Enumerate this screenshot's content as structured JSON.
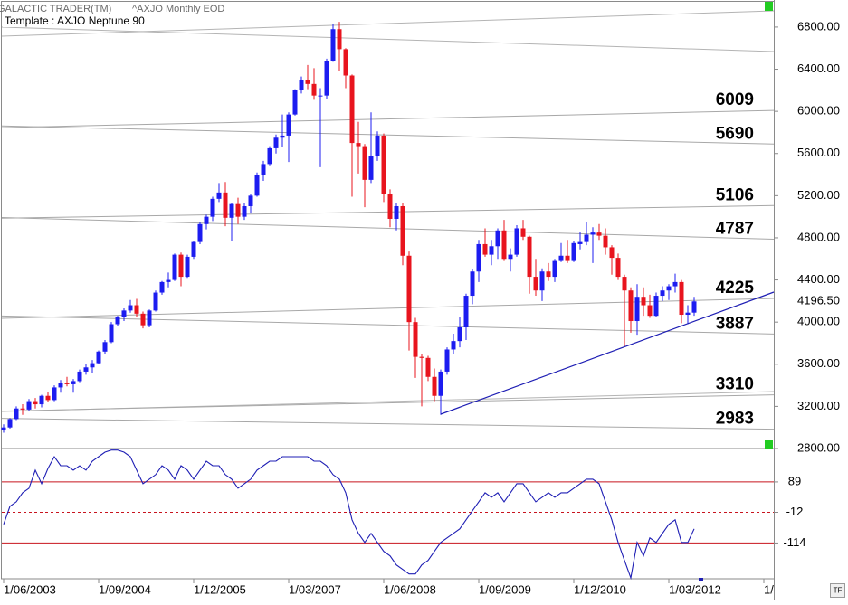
{
  "header": {
    "app": "GALACTIC TRADER(TM)",
    "symbol": "^AXJO Monthly EOD",
    "template": "Template : AXJO Neptune 90"
  },
  "tf_button": "TF",
  "chart_data": [
    {
      "type": "candlestick",
      "up_color": "#1c1cf0",
      "down_color": "#e8141e",
      "x": [
        "1/06/2003",
        "1/07/2003",
        "1/08/2003",
        "1/09/2003",
        "1/10/2003",
        "1/11/2003",
        "1/12/2003",
        "1/01/2004",
        "1/02/2004",
        "1/03/2004",
        "1/04/2004",
        "1/05/2004",
        "1/06/2004",
        "1/07/2004",
        "1/08/2004",
        "1/09/2004",
        "1/10/2004",
        "1/11/2004",
        "1/12/2004",
        "1/01/2005",
        "1/02/2005",
        "1/03/2005",
        "1/04/2005",
        "1/05/2005",
        "1/06/2005",
        "1/07/2005",
        "1/08/2005",
        "1/09/2005",
        "1/10/2005",
        "1/11/2005",
        "1/12/2005",
        "1/01/2006",
        "1/02/2006",
        "1/03/2006",
        "1/04/2006",
        "1/05/2006",
        "1/06/2006",
        "1/07/2006",
        "1/08/2006",
        "1/09/2006",
        "1/10/2006",
        "1/11/2006",
        "1/12/2006",
        "1/01/2007",
        "1/02/2007",
        "1/03/2007",
        "1/04/2007",
        "1/05/2007",
        "1/06/2007",
        "1/07/2007",
        "1/08/2007",
        "1/09/2007",
        "1/10/2007",
        "1/11/2007",
        "1/12/2007",
        "1/01/2008",
        "1/02/2008",
        "1/03/2008",
        "1/04/2008",
        "1/05/2008",
        "1/06/2008",
        "1/07/2008",
        "1/08/2008",
        "1/09/2008",
        "1/10/2008",
        "1/11/2008",
        "1/12/2008",
        "1/01/2009",
        "1/02/2009",
        "1/03/2009",
        "1/04/2009",
        "1/05/2009",
        "1/06/2009",
        "1/07/2009",
        "1/08/2009",
        "1/09/2009",
        "1/10/2009",
        "1/11/2009",
        "1/12/2009",
        "1/01/2010",
        "1/02/2010",
        "1/03/2010",
        "1/04/2010",
        "1/05/2010",
        "1/06/2010",
        "1/07/2010",
        "1/08/2010",
        "1/09/2010",
        "1/10/2010",
        "1/11/2010",
        "1/12/2010",
        "1/01/2011",
        "1/02/2011",
        "1/03/2011",
        "1/04/2011",
        "1/05/2011",
        "1/06/2011",
        "1/07/2011",
        "1/08/2011",
        "1/09/2011",
        "1/10/2011",
        "1/11/2011",
        "1/12/2011",
        "1/01/2012",
        "1/02/2012",
        "1/03/2012",
        "1/04/2012",
        "1/05/2012",
        "1/06/2012",
        "1/07/2012"
      ],
      "ohlc": [
        [
          2980,
          3030,
          2950,
          3000
        ],
        [
          3000,
          3090,
          2990,
          3080
        ],
        [
          3080,
          3200,
          3070,
          3180
        ],
        [
          3180,
          3220,
          3120,
          3170
        ],
        [
          3170,
          3270,
          3160,
          3250
        ],
        [
          3250,
          3280,
          3180,
          3220
        ],
        [
          3220,
          3310,
          3190,
          3300
        ],
        [
          3300,
          3340,
          3240,
          3260
        ],
        [
          3260,
          3400,
          3250,
          3380
        ],
        [
          3380,
          3450,
          3330,
          3420
        ],
        [
          3420,
          3480,
          3390,
          3410
        ],
        [
          3410,
          3460,
          3330,
          3440
        ],
        [
          3440,
          3550,
          3430,
          3530
        ],
        [
          3530,
          3600,
          3500,
          3570
        ],
        [
          3570,
          3640,
          3520,
          3610
        ],
        [
          3610,
          3730,
          3600,
          3720
        ],
        [
          3720,
          3830,
          3700,
          3810
        ],
        [
          3810,
          4000,
          3800,
          3980
        ],
        [
          3980,
          4060,
          3960,
          4050
        ],
        [
          4050,
          4130,
          4010,
          4110
        ],
        [
          4110,
          4210,
          4090,
          4160
        ],
        [
          4160,
          4220,
          4050,
          4080
        ],
        [
          4080,
          4100,
          3940,
          3970
        ],
        [
          3970,
          4120,
          3950,
          4110
        ],
        [
          4110,
          4300,
          4100,
          4280
        ],
        [
          4280,
          4390,
          4260,
          4380
        ],
        [
          4380,
          4470,
          4330,
          4400
        ],
        [
          4400,
          4650,
          4390,
          4640
        ],
        [
          4640,
          4660,
          4340,
          4430
        ],
        [
          4430,
          4640,
          4420,
          4620
        ],
        [
          4620,
          4770,
          4600,
          4760
        ],
        [
          4760,
          4950,
          4740,
          4930
        ],
        [
          4930,
          5020,
          4880,
          5000
        ],
        [
          5000,
          5190,
          4960,
          5170
        ],
        [
          5170,
          5320,
          5140,
          5230
        ],
        [
          5230,
          5330,
          4910,
          4990
        ],
        [
          4990,
          5130,
          4770,
          5120
        ],
        [
          5120,
          5180,
          4930,
          5000
        ],
        [
          5000,
          5130,
          4970,
          5100
        ],
        [
          5100,
          5220,
          5030,
          5200
        ],
        [
          5200,
          5420,
          5190,
          5400
        ],
        [
          5400,
          5530,
          5340,
          5500
        ],
        [
          5500,
          5670,
          5480,
          5650
        ],
        [
          5650,
          5780,
          5600,
          5750
        ],
        [
          5750,
          5970,
          5660,
          5770
        ],
        [
          5770,
          5990,
          5520,
          5970
        ],
        [
          5970,
          6210,
          5960,
          6200
        ],
        [
          6200,
          6330,
          6170,
          6300
        ],
        [
          6300,
          6440,
          6210,
          6260
        ],
        [
          6260,
          6410,
          6110,
          6150
        ],
        [
          6150,
          6220,
          5470,
          6150
        ],
        [
          6150,
          6500,
          6120,
          6480
        ],
        [
          6480,
          6830,
          6470,
          6780
        ],
        [
          6780,
          6850,
          6380,
          6590
        ],
        [
          6590,
          6600,
          6220,
          6340
        ],
        [
          6340,
          6350,
          5190,
          5700
        ],
        [
          5700,
          5900,
          5410,
          5670
        ],
        [
          5670,
          5690,
          5090,
          5350
        ],
        [
          5350,
          5990,
          5320,
          5580
        ],
        [
          5580,
          5810,
          5530,
          5770
        ],
        [
          5770,
          5790,
          5140,
          5220
        ],
        [
          5220,
          5260,
          4900,
          4980
        ],
        [
          4980,
          5130,
          4870,
          5100
        ],
        [
          5100,
          5130,
          4540,
          4630
        ],
        [
          4630,
          4670,
          3730,
          4000
        ],
        [
          4000,
          4040,
          3470,
          3670
        ],
        [
          3670,
          3700,
          3200,
          3660
        ],
        [
          3660,
          3680,
          3440,
          3480
        ],
        [
          3480,
          3560,
          3250,
          3300
        ],
        [
          3300,
          3550,
          3120,
          3530
        ],
        [
          3530,
          3760,
          3500,
          3740
        ],
        [
          3740,
          3890,
          3700,
          3820
        ],
        [
          3820,
          4050,
          3760,
          3950
        ],
        [
          3950,
          4270,
          3830,
          4250
        ],
        [
          4250,
          4500,
          4170,
          4480
        ],
        [
          4480,
          4780,
          4380,
          4740
        ],
        [
          4740,
          4890,
          4620,
          4640
        ],
        [
          4640,
          4780,
          4540,
          4720
        ],
        [
          4720,
          4890,
          4600,
          4870
        ],
        [
          4870,
          4970,
          4580,
          4600
        ],
        [
          4600,
          4700,
          4480,
          4640
        ],
        [
          4640,
          4920,
          4620,
          4890
        ],
        [
          4890,
          4970,
          4780,
          4810
        ],
        [
          4810,
          4820,
          4270,
          4430
        ],
        [
          4430,
          4600,
          4250,
          4300
        ],
        [
          4300,
          4510,
          4200,
          4480
        ],
        [
          4480,
          4560,
          4390,
          4430
        ],
        [
          4430,
          4600,
          4380,
          4580
        ],
        [
          4580,
          4750,
          4570,
          4630
        ],
        [
          4630,
          4780,
          4560,
          4580
        ],
        [
          4580,
          4770,
          4570,
          4750
        ],
        [
          4740,
          4860,
          4690,
          4760
        ],
        [
          4760,
          4950,
          4730,
          4830
        ],
        [
          4830,
          4900,
          4560,
          4850
        ],
        [
          4850,
          4930,
          4780,
          4820
        ],
        [
          4820,
          4890,
          4640,
          4710
        ],
        [
          4710,
          4730,
          4450,
          4610
        ],
        [
          4610,
          4650,
          4400,
          4430
        ],
        [
          4430,
          4450,
          3770,
          4300
        ],
        [
          4300,
          4330,
          3900,
          4010
        ],
        [
          4010,
          4360,
          3880,
          4240
        ],
        [
          4240,
          4330,
          4060,
          4160
        ],
        [
          4160,
          4260,
          4040,
          4060
        ],
        [
          4060,
          4280,
          4050,
          4250
        ],
        [
          4250,
          4340,
          4200,
          4300
        ],
        [
          4300,
          4360,
          4210,
          4340
        ],
        [
          4340,
          4460,
          4280,
          4380
        ],
        [
          4380,
          4400,
          3990,
          4070
        ],
        [
          4070,
          4160,
          3980,
          4090
        ],
        [
          4090,
          4240,
          4060,
          4196.5
        ]
      ],
      "ylim": [
        2800,
        7031
      ],
      "yticks": [
        {
          "value": 2800,
          "label": "2800.00"
        },
        {
          "value": 3200,
          "label": "3200.00"
        },
        {
          "value": 3600,
          "label": "3600.00"
        },
        {
          "value": 4000,
          "label": "4000.00"
        },
        {
          "value": 4400,
          "label": "4400.00"
        },
        {
          "value": 4800,
          "label": "4800.00"
        },
        {
          "value": 5200,
          "label": "5200.00"
        },
        {
          "value": 5600,
          "label": "5600.00"
        },
        {
          "value": 6000,
          "label": "6000.00"
        },
        {
          "value": 6400,
          "label": "6400.00"
        },
        {
          "value": 6800,
          "label": "6800.00"
        }
      ],
      "last_label": {
        "value": 4196.5,
        "label": "4196.50"
      },
      "levels": [
        6009,
        5690,
        5106,
        4787,
        4225,
        3887,
        3310,
        2983
      ],
      "level_color": "#a8a8a8",
      "xticks": [
        "1/06/2003",
        "1/09/2004",
        "1/12/2005",
        "1/03/2007",
        "1/06/2008",
        "1/09/2009",
        "1/12/2010",
        "1/03/2012",
        "1/"
      ]
    },
    {
      "type": "line",
      "color": "#1e1eb4",
      "values": [
        -52,
        8,
        23,
        53,
        68,
        128,
        83,
        134,
        173,
        143,
        143,
        128,
        143,
        128,
        158,
        173,
        188,
        195,
        195,
        188,
        173,
        128,
        83,
        98,
        113,
        143,
        128,
        98,
        143,
        128,
        98,
        128,
        158,
        143,
        143,
        113,
        98,
        68,
        83,
        98,
        128,
        143,
        158,
        158,
        173,
        173,
        173,
        173,
        173,
        158,
        158,
        143,
        113,
        98,
        53,
        -37,
        -82,
        -112,
        -82,
        -112,
        -142,
        -157,
        -187,
        -202,
        -217,
        -217,
        -187,
        -172,
        -142,
        -112,
        -97,
        -82,
        -67,
        -37,
        -7,
        23,
        53,
        38,
        53,
        23,
        53,
        83,
        83,
        53,
        23,
        38,
        53,
        38,
        53,
        53,
        68,
        83,
        98,
        98,
        83,
        23,
        -37,
        -112,
        -172,
        -230,
        -112,
        -157,
        -97,
        -112,
        -82,
        -52,
        -37,
        -112,
        -112,
        -67
      ],
      "ylim": [
        -233,
        197
      ],
      "yticks": [
        89,
        -12,
        -114
      ],
      "tick_color": "#c8141e"
    }
  ]
}
